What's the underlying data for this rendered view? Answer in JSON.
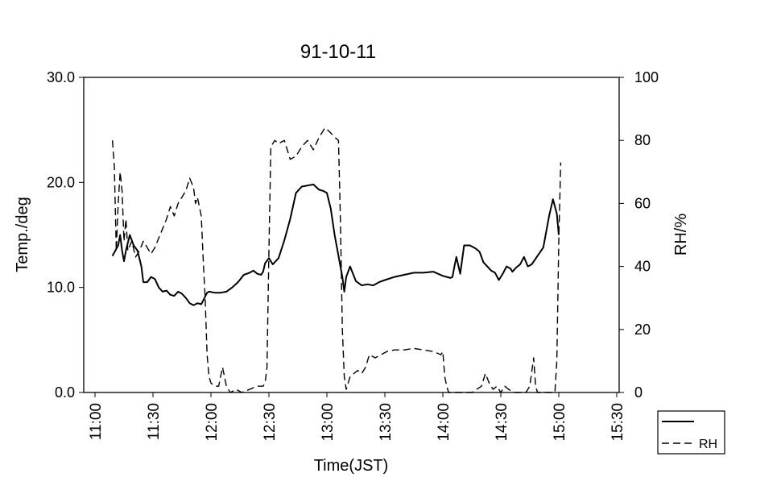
{
  "chart_data": {
    "type": "line",
    "title": "91-10-11",
    "xlabel": "Time(JST)",
    "ylabel_left": "Temp./deg",
    "ylabel_right": "RH/%",
    "x_ticks": [
      "11:00",
      "11:30",
      "12:00",
      "12:30",
      "13:00",
      "13:30",
      "14:00",
      "14:30",
      "15:00",
      "15:30"
    ],
    "x_range_minutes": [
      660,
      930
    ],
    "y_left_range": [
      0,
      30
    ],
    "y_left_ticks": [
      "0.0",
      "10.0",
      "20.0",
      "30.0"
    ],
    "y_right_range": [
      0,
      100
    ],
    "y_right_ticks": [
      "0",
      "20",
      "40",
      "60",
      "80",
      "100"
    ],
    "grid": false,
    "legend_position": "bottom-right, outside",
    "series": [
      {
        "name": "",
        "axis": "left",
        "line_style": "solid",
        "x": [
          "11:09",
          "11:12",
          "11:13",
          "11:14",
          "11:15",
          "11:16",
          "11:18",
          "11:20",
          "11:22",
          "11:24",
          "11:25",
          "11:27",
          "11:29",
          "11:31",
          "11:33",
          "11:35",
          "11:37",
          "11:39",
          "11:41",
          "11:43",
          "11:45",
          "11:47",
          "11:49",
          "11:51",
          "11:53",
          "11:55",
          "11:58",
          "11:59",
          "12:02",
          "12:05",
          "12:08",
          "12:11",
          "12:14",
          "12:17",
          "12:20",
          "12:22",
          "12:24",
          "12:26",
          "12:27",
          "12:28",
          "12:30",
          "12:32",
          "12:35",
          "12:38",
          "12:41",
          "12:44",
          "12:47",
          "12:50",
          "12:53",
          "12:56",
          "12:58",
          "13:00",
          "13:02",
          "13:04",
          "13:06",
          "13:08",
          "13:09",
          "13:10",
          "13:12",
          "13:15",
          "13:18",
          "13:21",
          "13:24",
          "13:27",
          "13:30",
          "13:35",
          "13:40",
          "13:45",
          "13:50",
          "13:55",
          "14:00",
          "14:02",
          "14:04",
          "14:05",
          "14:06",
          "14:07",
          "14:09",
          "14:11",
          "14:14",
          "14:17",
          "14:19",
          "14:21",
          "14:23",
          "14:25",
          "14:27",
          "14:29",
          "14:31",
          "14:33",
          "14:35",
          "14:36",
          "14:38",
          "14:40",
          "14:42",
          "14:44",
          "14:46",
          "14:49",
          "14:52",
          "14:55",
          "14:57",
          "14:59",
          "15:00"
        ],
        "values": [
          13.0,
          14.0,
          15.0,
          13.5,
          12.5,
          13.5,
          15.0,
          14.0,
          13.5,
          12.0,
          10.5,
          10.5,
          11.0,
          10.8,
          10.0,
          9.6,
          9.7,
          9.3,
          9.2,
          9.6,
          9.4,
          9.0,
          8.5,
          8.3,
          8.5,
          8.4,
          9.5,
          9.6,
          9.5,
          9.5,
          9.6,
          10.0,
          10.5,
          11.2,
          11.4,
          11.6,
          11.3,
          11.2,
          11.5,
          12.3,
          12.8,
          12.2,
          12.8,
          14.5,
          16.5,
          19.0,
          19.6,
          19.7,
          19.8,
          19.3,
          19.2,
          19.0,
          17.5,
          15.0,
          13.0,
          11.0,
          9.6,
          11.0,
          12.0,
          10.6,
          10.2,
          10.3,
          10.2,
          10.5,
          10.7,
          11.0,
          11.2,
          11.4,
          11.4,
          11.5,
          11.1,
          11.0,
          10.9,
          11.0,
          12.0,
          12.9,
          11.3,
          14.0,
          14.0,
          13.7,
          13.4,
          12.4,
          12.0,
          11.6,
          11.4,
          10.7,
          11.3,
          12.0,
          11.8,
          11.5,
          11.9,
          12.2,
          12.9,
          12.0,
          12.2,
          13.0,
          13.8,
          16.8,
          18.4,
          17.0,
          15.0
        ]
      },
      {
        "name": "RH",
        "axis": "right",
        "line_style": "dashed",
        "x": [
          "11:09",
          "11:10",
          "11:11",
          "11:12",
          "11:13",
          "11:14",
          "11:15",
          "11:16",
          "11:17",
          "11:19",
          "11:21",
          "11:23",
          "11:25",
          "11:27",
          "11:29",
          "11:31",
          "11:33",
          "11:35",
          "11:37",
          "11:39",
          "11:41",
          "11:43",
          "11:45",
          "11:47",
          "11:49",
          "11:51",
          "11:52",
          "11:53",
          "11:55",
          "11:56",
          "11:57",
          "11:58",
          "11:59",
          "12:00",
          "12:02",
          "12:04",
          "12:06",
          "12:08",
          "12:10",
          "12:13",
          "12:16",
          "12:20",
          "12:24",
          "12:27",
          "12:28",
          "12:29",
          "12:30",
          "12:31",
          "12:32",
          "12:33",
          "12:35",
          "12:38",
          "12:41",
          "12:44",
          "12:47",
          "12:50",
          "12:53",
          "12:56",
          "12:59",
          "13:01",
          "13:04",
          "13:06",
          "13:07",
          "13:08",
          "13:09",
          "13:10",
          "13:11",
          "13:12",
          "13:14",
          "13:16",
          "13:18",
          "13:20",
          "13:22",
          "13:25",
          "13:28",
          "13:31",
          "13:35",
          "13:40",
          "13:45",
          "13:50",
          "13:55",
          "13:57",
          "13:59",
          "14:00",
          "14:01",
          "14:02",
          "14:03",
          "14:04",
          "14:05",
          "14:07",
          "14:10",
          "14:15",
          "14:20",
          "14:22",
          "14:24",
          "14:26",
          "14:28",
          "14:30",
          "14:32",
          "14:34",
          "14:37",
          "14:40",
          "14:43",
          "14:45",
          "14:47",
          "14:48",
          "14:49",
          "14:50",
          "14:52",
          "14:55",
          "14:57",
          "14:58",
          "14:59",
          "15:00",
          "15:01"
        ],
        "values": [
          80.0,
          72.0,
          45.0,
          60.0,
          70.0,
          64.0,
          48.0,
          55.0,
          45.0,
          48.0,
          43.0,
          45.0,
          48.0,
          46.0,
          44.0,
          46.0,
          49.0,
          52.0,
          55.0,
          59.0,
          56.0,
          60.0,
          62.0,
          64.0,
          68.0,
          65.0,
          60.0,
          62.0,
          56.0,
          42.0,
          30.0,
          12.0,
          5.0,
          3.0,
          2.0,
          2.0,
          8.0,
          2.0,
          0.0,
          1.0,
          0.0,
          1.0,
          2.0,
          2.0,
          3.0,
          8.0,
          45.0,
          78.0,
          79.0,
          80.0,
          79.0,
          80.0,
          74.0,
          75.0,
          78.0,
          80.0,
          77.0,
          81.0,
          84.0,
          83.0,
          81.0,
          80.0,
          55.0,
          20.0,
          5.0,
          1.0,
          3.0,
          5.0,
          6.0,
          7.0,
          6.0,
          8.0,
          12.0,
          11.0,
          12.0,
          13.0,
          13.5,
          13.5,
          14.0,
          13.5,
          13.0,
          12.5,
          12.0,
          13.0,
          5.0,
          2.0,
          0.0,
          0.0,
          0.0,
          0.0,
          0.0,
          0.0,
          2.0,
          6.0,
          3.0,
          1.0,
          2.0,
          0.0,
          2.0,
          1.0,
          0.0,
          0.0,
          0.0,
          2.0,
          11.0,
          2.0,
          0.0,
          0.0,
          0.0,
          0.0,
          0.0,
          0.0,
          10.0,
          48.0,
          73.0
        ]
      }
    ]
  }
}
